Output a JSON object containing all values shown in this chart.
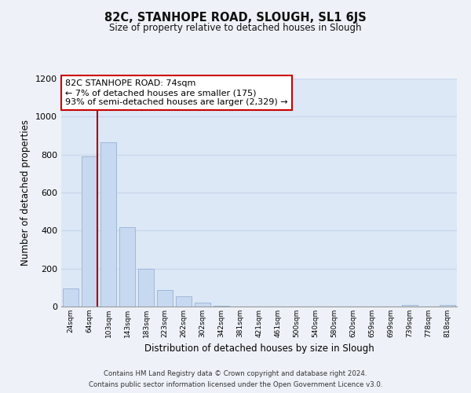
{
  "title": "82C, STANHOPE ROAD, SLOUGH, SL1 6JS",
  "subtitle": "Size of property relative to detached houses in Slough",
  "xlabel": "Distribution of detached houses by size in Slough",
  "ylabel": "Number of detached properties",
  "bar_labels": [
    "24sqm",
    "64sqm",
    "103sqm",
    "143sqm",
    "183sqm",
    "223sqm",
    "262sqm",
    "302sqm",
    "342sqm",
    "381sqm",
    "421sqm",
    "461sqm",
    "500sqm",
    "540sqm",
    "580sqm",
    "620sqm",
    "659sqm",
    "699sqm",
    "739sqm",
    "778sqm",
    "818sqm"
  ],
  "bar_values": [
    95,
    790,
    865,
    420,
    200,
    85,
    52,
    22,
    5,
    2,
    0,
    0,
    2,
    0,
    0,
    0,
    0,
    0,
    10,
    0,
    10
  ],
  "bar_color": "#c6d9f0",
  "bar_edge_color": "#a0b8d8",
  "marker_line_color": "#aa0000",
  "annotation_text": "82C STANHOPE ROAD: 74sqm\n← 7% of detached houses are smaller (175)\n93% of semi-detached houses are larger (2,329) →",
  "annotation_box_color": "#ffffff",
  "annotation_box_edge": "#cc0000",
  "ylim": [
    0,
    1200
  ],
  "yticks": [
    0,
    200,
    400,
    600,
    800,
    1000,
    1200
  ],
  "footer_line1": "Contains HM Land Registry data © Crown copyright and database right 2024.",
  "footer_line2": "Contains public sector information licensed under the Open Government Licence v3.0.",
  "background_color": "#eef2f8",
  "grid_color": "#c8d8ec",
  "plot_bg_color": "#dce8f5"
}
